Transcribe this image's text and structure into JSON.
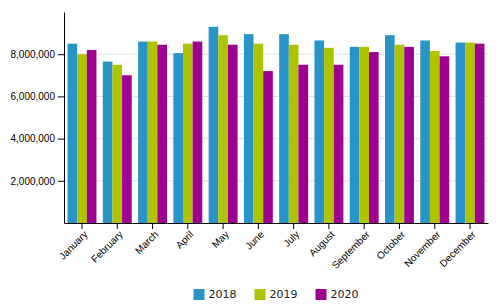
{
  "chart_data": {
    "type": "bar",
    "categories": [
      "January",
      "February",
      "March",
      "April",
      "May",
      "June",
      "July",
      "August",
      "September",
      "October",
      "November",
      "December"
    ],
    "series": [
      {
        "name": "2018",
        "color": "#2994c8",
        "values": [
          8500000,
          7650000,
          8600000,
          8050000,
          9300000,
          8950000,
          8950000,
          8650000,
          8350000,
          8900000,
          8650000,
          8550000
        ]
      },
      {
        "name": "2019",
        "color": "#aec400",
        "values": [
          8000000,
          7500000,
          8600000,
          8500000,
          8900000,
          8500000,
          8450000,
          8300000,
          8350000,
          8450000,
          8150000,
          8550000
        ]
      },
      {
        "name": "2020",
        "color": "#9e0090",
        "values": [
          8200000,
          7000000,
          8450000,
          8600000,
          8450000,
          7200000,
          7500000,
          7500000,
          8100000,
          8350000,
          7900000,
          8500000
        ]
      }
    ],
    "ylim": [
      0,
      10000000
    ],
    "yticks": [
      {
        "value": 2000000,
        "label": "2,000,000"
      },
      {
        "value": 4000000,
        "label": "4,000,000"
      },
      {
        "value": 6000000,
        "label": "6,000,000"
      },
      {
        "value": 8000000,
        "label": "8,000,000"
      }
    ],
    "grid": true,
    "legend": "bottom"
  }
}
